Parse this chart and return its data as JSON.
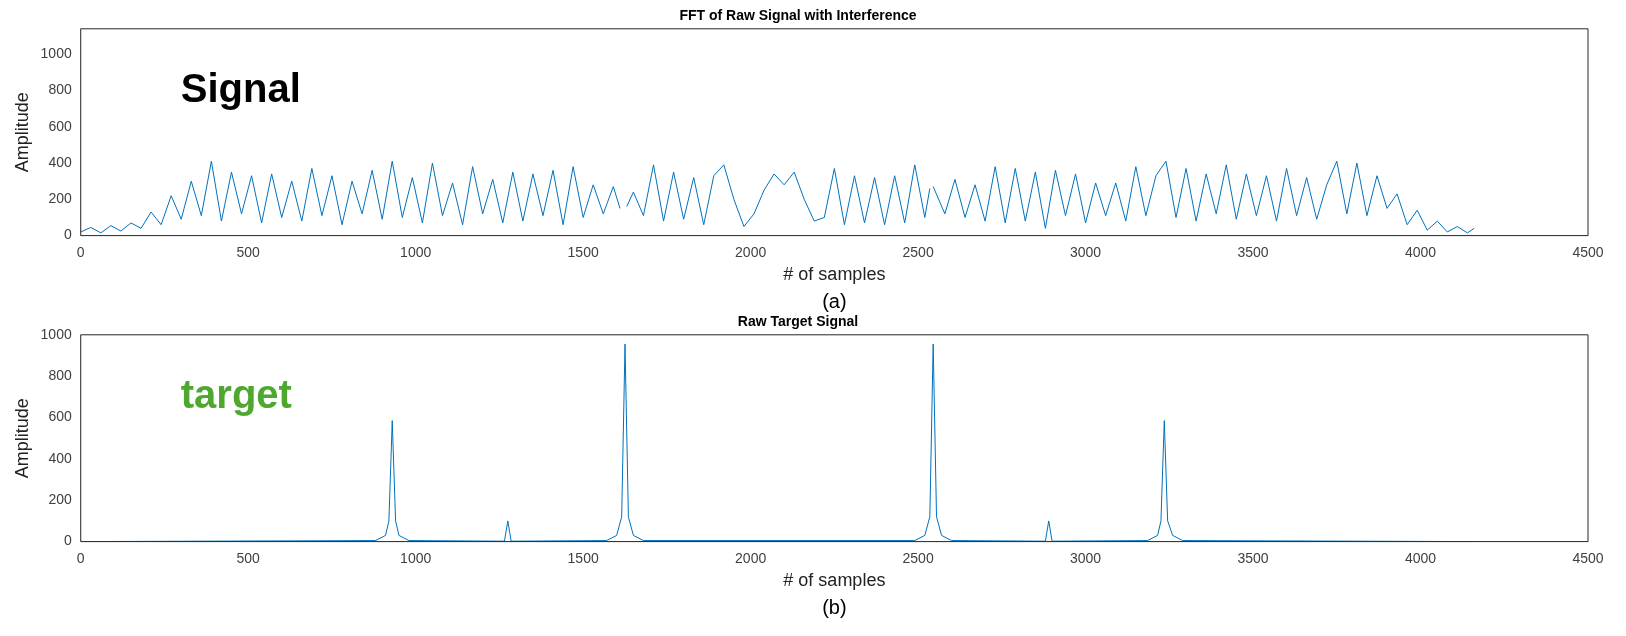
{
  "chart_data": [
    {
      "type": "line",
      "title": "FFT of Raw Signal with Interference",
      "xlabel": "# of samples",
      "ylabel": "Amplitude",
      "annotations": [
        "Signal",
        "(a)"
      ],
      "x": [
        0,
        30,
        60,
        90,
        120,
        150,
        180,
        210,
        240,
        270,
        300,
        330,
        360,
        390,
        420,
        450,
        480,
        510,
        540,
        570,
        600,
        630,
        660,
        690,
        720,
        750,
        780,
        810,
        840,
        870,
        900,
        930,
        960,
        990,
        1020,
        1050,
        1080,
        1110,
        1140,
        1170,
        1200,
        1230,
        1260,
        1290,
        1320,
        1350,
        1380,
        1410,
        1440,
        1470,
        1500,
        1530,
        1560,
        1590,
        1610,
        1620,
        1630,
        1650,
        1680,
        1710,
        1740,
        1770,
        1800,
        1830,
        1860,
        1890,
        1920,
        1950,
        1980,
        2010,
        2040,
        2070,
        2100,
        2130,
        2160,
        2190,
        2220,
        2250,
        2280,
        2310,
        2340,
        2370,
        2400,
        2430,
        2460,
        2490,
        2520,
        2535,
        2540,
        2545,
        2580,
        2610,
        2640,
        2670,
        2700,
        2730,
        2760,
        2790,
        2820,
        2850,
        2880,
        2910,
        2940,
        2970,
        3000,
        3030,
        3060,
        3090,
        3120,
        3150,
        3180,
        3210,
        3240,
        3270,
        3300,
        3330,
        3360,
        3390,
        3420,
        3450,
        3480,
        3510,
        3540,
        3570,
        3600,
        3630,
        3660,
        3690,
        3720,
        3750,
        3780,
        3810,
        3840,
        3870,
        3900,
        3930,
        3960,
        3990,
        4020,
        4050,
        4080,
        4110,
        4140,
        4160
      ],
      "series": [
        {
          "color": "#0072bd",
          "values": [
            20,
            45,
            15,
            55,
            25,
            70,
            40,
            130,
            60,
            220,
            90,
            300,
            110,
            410,
            80,
            350,
            120,
            330,
            70,
            340,
            100,
            300,
            80,
            370,
            110,
            330,
            60,
            300,
            120,
            360,
            90,
            410,
            100,
            320,
            70,
            400,
            110,
            290,
            60,
            380,
            120,
            310,
            70,
            350,
            80,
            340,
            110,
            360,
            60,
            380,
            100,
            280,
            120,
            270,
            150,
            null,
            160,
            240,
            110,
            390,
            80,
            350,
            90,
            320,
            60,
            330,
            390,
            200,
            50,
            120,
            250,
            340,
            280,
            350,
            200,
            80,
            100,
            370,
            60,
            330,
            70,
            320,
            60,
            330,
            70,
            390,
            100,
            260,
            null,
            270,
            120,
            310,
            100,
            280,
            80,
            380,
            70,
            370,
            80,
            350,
            40,
            360,
            110,
            340,
            70,
            290,
            110,
            290,
            80,
            380,
            110,
            330,
            410,
            100,
            370,
            80,
            340,
            120,
            390,
            90,
            340,
            110,
            330,
            80,
            370,
            110,
            320,
            90,
            280,
            410,
            120,
            400,
            110,
            330,
            150,
            230,
            60,
            140,
            30,
            80,
            20,
            50,
            15,
            40
          ]
        }
      ],
      "xlim": [
        0,
        4500
      ],
      "xticks": [
        0,
        500,
        1000,
        1500,
        2000,
        2500,
        3000,
        3500,
        4000,
        4500
      ],
      "ylim": [
        0,
        1140
      ],
      "yticks": [
        0,
        200,
        400,
        600,
        800,
        1000
      ]
    },
    {
      "type": "line",
      "title": "Raw Target Signal",
      "xlabel": "# of samples",
      "ylabel": "Amplitude",
      "annotations": [
        "target",
        "(b)"
      ],
      "x": [
        0,
        880,
        910,
        920,
        930,
        940,
        950,
        980,
        1265,
        1275,
        1285,
        1570,
        1600,
        1615,
        1625,
        1635,
        1650,
        1680,
        2490,
        2520,
        2535,
        2545,
        2555,
        2570,
        2600,
        2880,
        2890,
        2900,
        3185,
        3215,
        3225,
        3235,
        3245,
        3260,
        3290,
        4160
      ],
      "series": [
        {
          "color": "#0072bd",
          "values": [
            0,
            5,
            30,
            100,
            585,
            100,
            30,
            5,
            2,
            100,
            2,
            5,
            30,
            120,
            955,
            120,
            30,
            5,
            5,
            30,
            120,
            955,
            120,
            30,
            5,
            2,
            100,
            2,
            5,
            30,
            100,
            585,
            100,
            30,
            5,
            0
          ]
        }
      ],
      "xlim": [
        0,
        4500
      ],
      "xticks": [
        0,
        500,
        1000,
        1500,
        2000,
        2500,
        3000,
        3500,
        4000,
        4500
      ],
      "ylim": [
        0,
        1000
      ],
      "yticks": [
        0,
        200,
        400,
        600,
        800,
        1000
      ]
    }
  ]
}
